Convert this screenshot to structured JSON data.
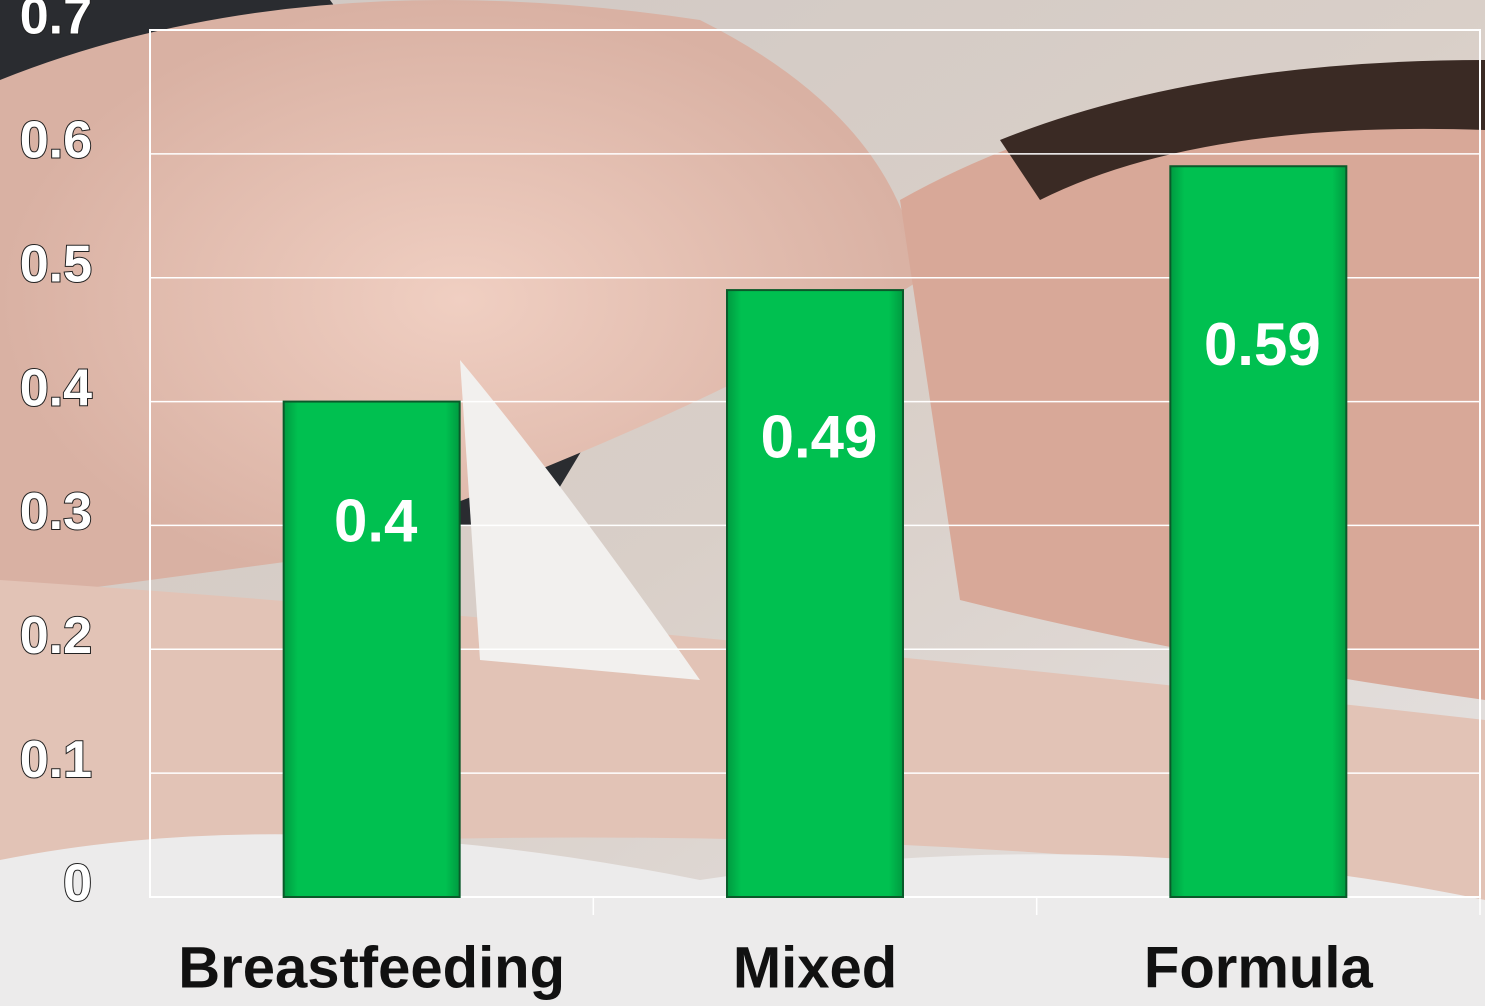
{
  "chart_data": {
    "type": "bar",
    "categories": [
      "Breastfeeding",
      "Mixed",
      "Formula"
    ],
    "values": [
      0.4,
      0.49,
      0.59
    ],
    "color": "#00b84f",
    "ylim": [
      0,
      0.7
    ],
    "yticks": [
      0,
      0.1,
      0.2,
      0.3,
      0.4,
      0.5,
      0.6,
      0.7
    ],
    "grid": true
  }
}
